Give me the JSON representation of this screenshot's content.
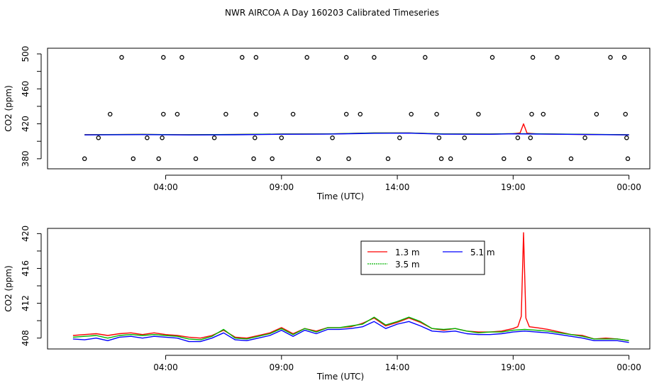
{
  "title": "NWR AIRCOA A  Day 160203  Calibrated Timeseries",
  "chart_data": [
    {
      "type": "line",
      "title": "NWR AIRCOA A  Day 160203  Calibrated Timeseries",
      "xlabel": "Time (UTC)",
      "ylabel": "CO2 (ppm)",
      "x_ticks": [
        "04:00",
        "09:00",
        "14:00",
        "19:00",
        "00:00"
      ],
      "x_tick_hours": [
        4,
        9,
        14,
        19,
        24
      ],
      "xlim_hours": [
        -1.1,
        24.9
      ],
      "ylim": [
        368.5,
        506.5
      ],
      "y_ticks": [
        380,
        420,
        460,
        500
      ],
      "y_tick_labels": [
        "380",
        "420",
        "460",
        "500"
      ],
      "grid": false,
      "series": [
        {
          "color": "#ff0000",
          "x": [
            0.5,
            3,
            5,
            7,
            9,
            11,
            13,
            14.5,
            16,
            18,
            19,
            19.3,
            19.45,
            19.6,
            20,
            22,
            24
          ],
          "values": [
            407.6,
            407.9,
            407.5,
            407.8,
            408.3,
            408.4,
            409.5,
            409.6,
            408.4,
            408.3,
            408.7,
            409.5,
            420.0,
            409.3,
            408.5,
            407.9,
            407.5
          ]
        },
        {
          "color": "#00b400",
          "x": [
            0.5,
            3,
            5,
            7,
            9,
            11,
            13,
            14.5,
            16,
            18,
            19,
            20,
            22,
            24
          ],
          "values": [
            407.5,
            407.9,
            407.5,
            407.8,
            408.3,
            408.4,
            409.5,
            409.6,
            408.4,
            408.3,
            408.8,
            408.6,
            408.0,
            407.5
          ]
        },
        {
          "color": "#0000ff",
          "x": [
            0.5,
            3,
            5,
            7,
            9,
            11,
            13,
            14.5,
            16,
            18,
            19,
            20,
            22,
            24
          ],
          "values": [
            407.3,
            407.6,
            407.2,
            407.5,
            408.0,
            408.2,
            409.2,
            409.3,
            408.1,
            408.0,
            408.5,
            408.3,
            407.8,
            407.3
          ]
        }
      ],
      "flag_points": {
        "x": [
          0.5,
          1.1,
          1.6,
          2.1,
          2.6,
          3.2,
          3.7,
          3.85,
          3.9,
          3.9,
          4.5,
          4.7,
          5.3,
          6.1,
          6.6,
          7.3,
          7.8,
          7.85,
          7.9,
          7.9,
          8.6,
          9.0,
          9.5,
          10.1,
          10.6,
          11.2,
          11.8,
          11.8,
          11.9,
          12.4,
          13.0,
          13.6,
          14.1,
          14.6,
          15.2,
          15.7,
          15.8,
          15.9,
          16.3,
          16.9,
          17.5,
          18.1,
          18.6,
          19.2,
          19.7,
          19.75,
          19.8,
          19.85,
          20.3,
          20.9,
          21.5,
          22.1,
          22.6,
          23.2,
          23.8,
          23.85,
          23.9,
          23.95
        ],
        "values": [
          380,
          404,
          431,
          496,
          380,
          404,
          380,
          404,
          431,
          496,
          431,
          496,
          380,
          404,
          431,
          496,
          380,
          404,
          431,
          496,
          380,
          404,
          431,
          496,
          380,
          404,
          431,
          496,
          380,
          431,
          496,
          380,
          404,
          431,
          496,
          431,
          404,
          380,
          380,
          404,
          431,
          496,
          380,
          404,
          380,
          404,
          431,
          496,
          431,
          496,
          380,
          404,
          431,
          496,
          496,
          431,
          404,
          380
        ]
      }
    },
    {
      "type": "line",
      "xlabel": "Time (UTC)",
      "ylabel": "CO2 (ppm)",
      "x_ticks": [
        "04:00",
        "09:00",
        "14:00",
        "19:00",
        "00:00"
      ],
      "x_tick_hours": [
        4,
        9,
        14,
        19,
        24
      ],
      "xlim_hours": [
        -1.1,
        24.9
      ],
      "ylim": [
        406.75,
        420.6
      ],
      "y_ticks": [
        408,
        412,
        416,
        420
      ],
      "y_tick_labels": [
        "408",
        "412",
        "416",
        "420"
      ],
      "grid": false,
      "legend": {
        "placement": "top-center",
        "entries": [
          "1.3 m",
          "3.5 m",
          "5.1 m"
        ]
      },
      "series": [
        {
          "name": "1.3 m",
          "color": "#ff0000",
          "x": [
            0,
            0.5,
            1,
            1.5,
            2,
            2.5,
            3,
            3.5,
            4,
            4.5,
            5,
            5.5,
            6,
            6.5,
            7,
            7.5,
            8,
            8.5,
            9,
            9.5,
            10,
            10.5,
            11,
            11.5,
            12,
            12.5,
            13,
            13.5,
            14,
            14.5,
            15,
            15.5,
            16,
            16.5,
            17,
            17.5,
            18,
            18.5,
            19,
            19.2,
            19.35,
            19.45,
            19.55,
            19.7,
            20,
            20.5,
            21,
            21.5,
            22,
            22.5,
            23,
            23.5,
            24
          ],
          "values": [
            408.3,
            408.4,
            408.5,
            408.3,
            408.5,
            408.6,
            408.4,
            408.6,
            408.4,
            408.3,
            408.1,
            408.0,
            408.3,
            408.9,
            408.1,
            408.0,
            408.3,
            408.6,
            409.2,
            408.5,
            409.1,
            408.8,
            409.2,
            409.2,
            409.3,
            409.7,
            410.3,
            409.4,
            409.8,
            410.3,
            409.8,
            409.1,
            408.9,
            409.1,
            408.8,
            408.7,
            408.7,
            408.8,
            409.1,
            409.3,
            410.5,
            420.1,
            410.3,
            409.3,
            409.2,
            409.0,
            408.7,
            408.4,
            408.3,
            407.9,
            408.0,
            407.9,
            407.7
          ]
        },
        {
          "name": "3.5 m",
          "color": "#00b400",
          "x": [
            0,
            0.5,
            1,
            1.5,
            2,
            2.5,
            3,
            3.5,
            4,
            4.5,
            5,
            5.5,
            6,
            6.5,
            7,
            7.5,
            8,
            8.5,
            9,
            9.5,
            10,
            10.5,
            11,
            11.5,
            12,
            12.5,
            13,
            13.5,
            14,
            14.5,
            15,
            15.5,
            16,
            16.5,
            17,
            17.5,
            18,
            18.5,
            19,
            19.5,
            20,
            20.5,
            21,
            21.5,
            22,
            22.5,
            23,
            23.5,
            24
          ],
          "values": [
            408.1,
            408.2,
            408.3,
            408.0,
            408.3,
            408.4,
            408.3,
            408.4,
            408.3,
            408.2,
            407.9,
            407.8,
            408.2,
            409.0,
            408.0,
            407.9,
            408.2,
            408.5,
            409.1,
            408.4,
            409.1,
            408.7,
            409.2,
            409.2,
            409.4,
            409.6,
            410.4,
            409.5,
            409.9,
            410.4,
            409.9,
            409.1,
            409.0,
            409.1,
            408.8,
            408.6,
            408.7,
            408.7,
            408.9,
            409.0,
            408.9,
            408.8,
            408.6,
            408.4,
            408.2,
            407.9,
            407.9,
            407.9,
            407.7
          ]
        },
        {
          "name": "5.1 m",
          "color": "#0000ff",
          "x": [
            0,
            0.5,
            1,
            1.5,
            2,
            2.5,
            3,
            3.5,
            4,
            4.5,
            5,
            5.5,
            6,
            6.5,
            7,
            7.5,
            8,
            8.5,
            9,
            9.5,
            10,
            10.5,
            11,
            11.5,
            12,
            12.5,
            13,
            13.5,
            14,
            14.5,
            15,
            15.5,
            16,
            16.5,
            17,
            17.5,
            18,
            18.5,
            19,
            19.5,
            20,
            20.5,
            21,
            21.5,
            22,
            22.5,
            23,
            23.5,
            24
          ],
          "values": [
            407.9,
            407.8,
            408.0,
            407.7,
            408.1,
            408.2,
            408.0,
            408.2,
            408.1,
            408.0,
            407.6,
            407.6,
            408.0,
            408.6,
            407.8,
            407.7,
            408.0,
            408.3,
            408.9,
            408.2,
            408.9,
            408.5,
            409.0,
            409.0,
            409.1,
            409.3,
            409.9,
            409.1,
            409.6,
            409.9,
            409.4,
            408.8,
            408.7,
            408.8,
            408.5,
            408.4,
            408.4,
            408.5,
            408.7,
            408.8,
            408.7,
            408.6,
            408.4,
            408.2,
            408.0,
            407.7,
            407.7,
            407.7,
            407.5
          ]
        }
      ]
    }
  ]
}
